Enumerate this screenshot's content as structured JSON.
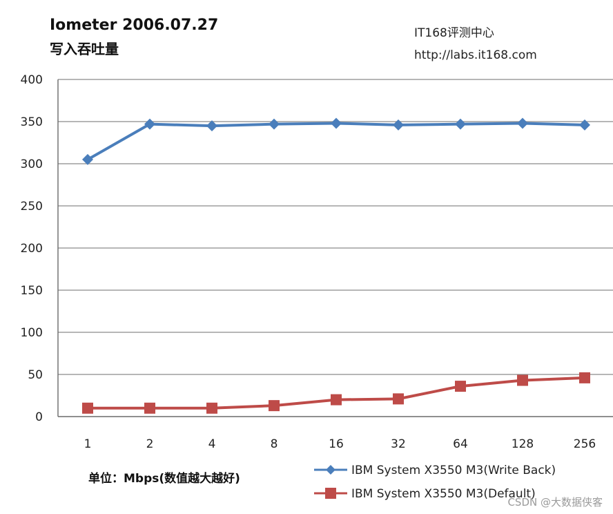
{
  "header": {
    "title": "Iometer 2006.07.27",
    "subtitle": "写入吞吐量",
    "brand": "IT168评测中心",
    "url": "http://labs.it168.com"
  },
  "footer": {
    "unit_label": "单位：Mbps(数值越大越好)",
    "watermark": "CSDN @大数据侠客"
  },
  "chart_data": {
    "type": "line",
    "title": "Iometer 2006.07.27",
    "subtitle": "写入吞吐量",
    "categories": [
      "1",
      "2",
      "4",
      "8",
      "16",
      "32",
      "64",
      "128",
      "256"
    ],
    "ylim": [
      0,
      400
    ],
    "yticks": [
      0,
      50,
      100,
      150,
      200,
      250,
      300,
      350,
      400
    ],
    "grid": true,
    "legend_position": "bottom-right",
    "series": [
      {
        "name": "IBM System X3550 M3(Write Back)",
        "color": "#4a7ebb",
        "marker": "diamond",
        "values": [
          305,
          347,
          345,
          347,
          348,
          346,
          347,
          348,
          346
        ]
      },
      {
        "name": "IBM System X3550 M3(Default)",
        "color": "#be4b48",
        "marker": "square",
        "values": [
          10,
          10,
          10,
          13,
          20,
          21,
          36,
          43,
          46
        ]
      }
    ]
  }
}
